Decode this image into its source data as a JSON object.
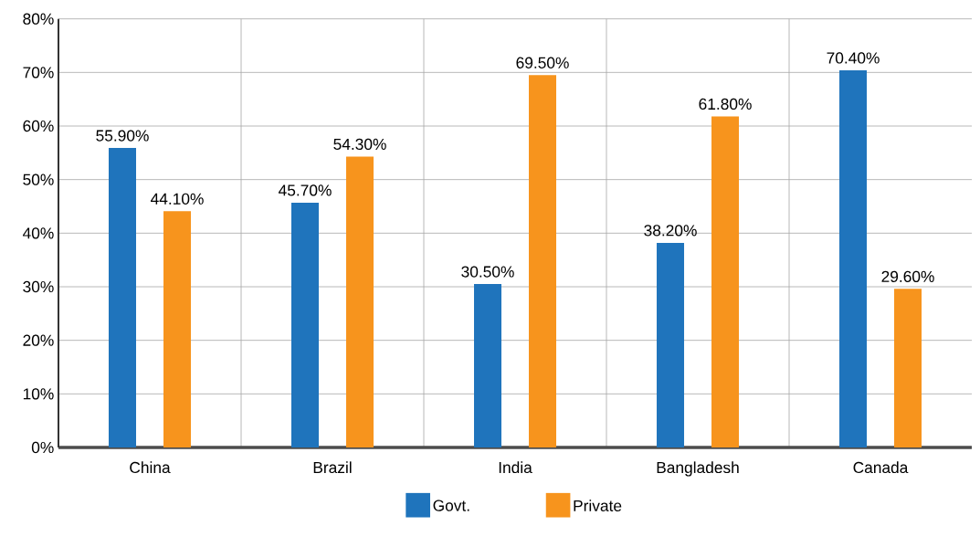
{
  "chart_data": {
    "type": "bar",
    "categories": [
      "China",
      "Brazil",
      "India",
      "Bangladesh",
      "Canada"
    ],
    "series": [
      {
        "name": "Govt.",
        "color": "#1f74bc",
        "values": [
          55.9,
          45.7,
          30.5,
          38.2,
          70.4
        ],
        "value_labels": [
          "55.90%",
          "45.70%",
          "30.50%",
          "38.20%",
          "70.40%"
        ]
      },
      {
        "name": "Private",
        "color": "#f7941d",
        "values": [
          44.1,
          54.3,
          69.5,
          61.8,
          29.6
        ],
        "value_labels": [
          "44.10%",
          "54.30%",
          "69.50%",
          "61.80%",
          "29.60%"
        ]
      }
    ],
    "ylim": [
      0,
      80
    ],
    "yticks": [
      {
        "value": 0,
        "label": "0%"
      },
      {
        "value": 10,
        "label": "10%"
      },
      {
        "value": 20,
        "label": "20%"
      },
      {
        "value": 30,
        "label": "30%"
      },
      {
        "value": 40,
        "label": "40%"
      },
      {
        "value": 50,
        "label": "50%"
      },
      {
        "value": 60,
        "label": "60%"
      },
      {
        "value": 70,
        "label": "70%"
      },
      {
        "value": 80,
        "label": "80%"
      }
    ],
    "grid": true,
    "legend": "bottom"
  }
}
